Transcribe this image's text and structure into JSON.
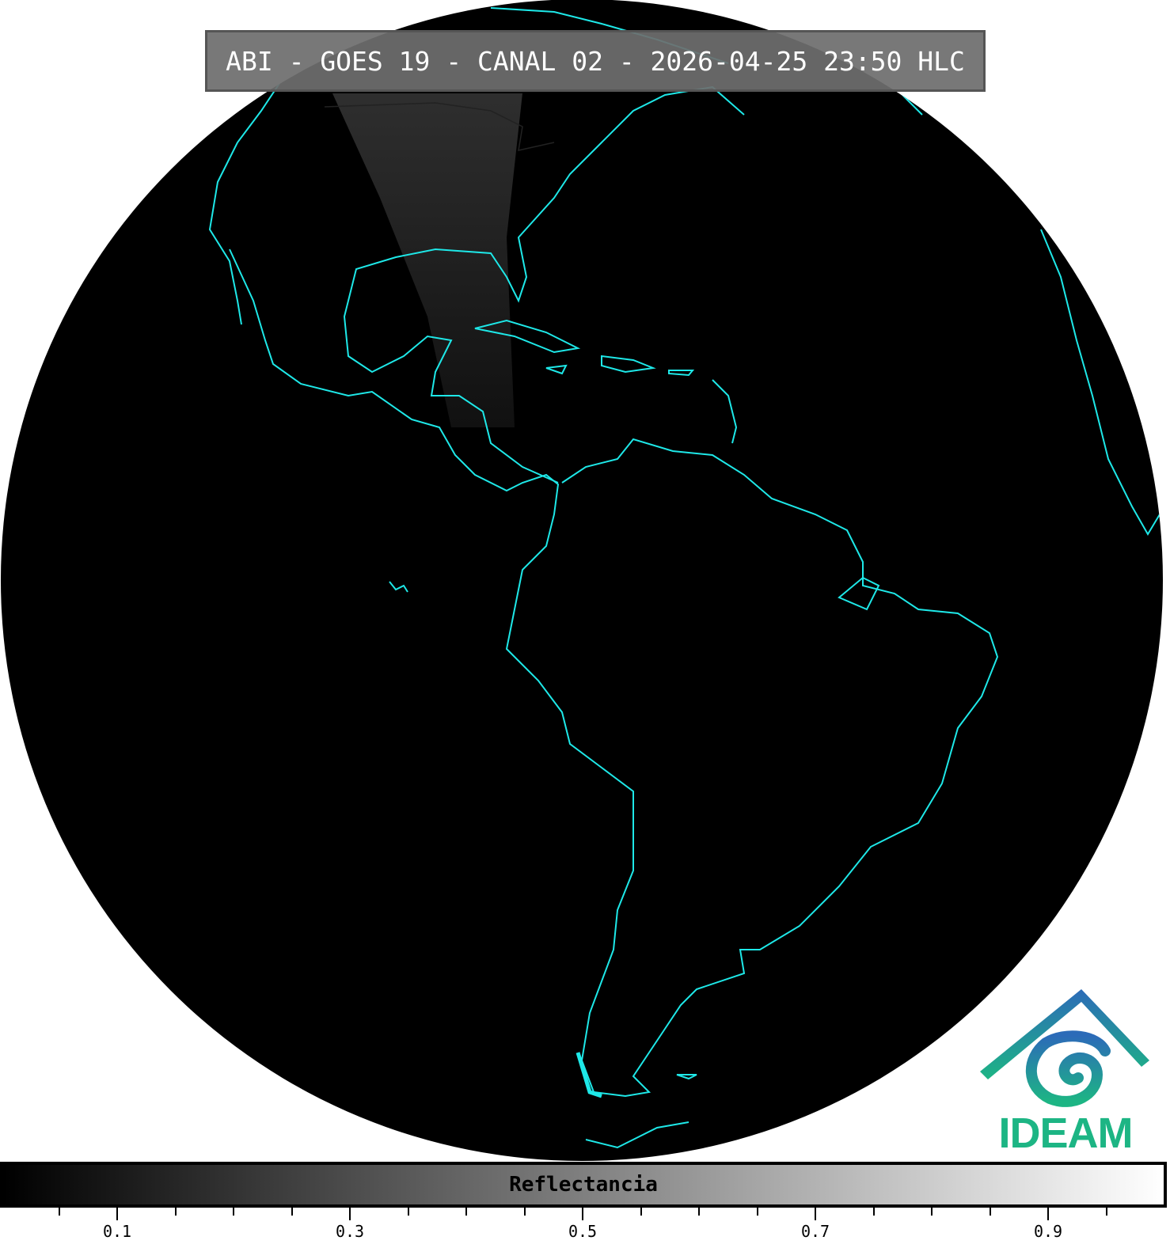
{
  "title": "ABI - GOES 19 - CANAL 02 - 2026-04-25 23:50 HLC",
  "map": {
    "projection": "geostationary full disk",
    "background": "#000000",
    "coastline_color": "#1ee8e8"
  },
  "colorbar": {
    "label": "Reflectancia",
    "range": [
      0,
      1
    ],
    "colormap": "grayscale black-to-white",
    "major_ticks": [
      "0.1",
      "0.3",
      "0.5",
      "0.7",
      "0.9"
    ],
    "minor_ticks": [
      0.05,
      0.15,
      0.2,
      0.25,
      0.35,
      0.4,
      0.45,
      0.55,
      0.6,
      0.65,
      0.75,
      0.8,
      0.85,
      0.95
    ]
  },
  "logo": {
    "text": "IDEAM",
    "color": "#1db584"
  }
}
